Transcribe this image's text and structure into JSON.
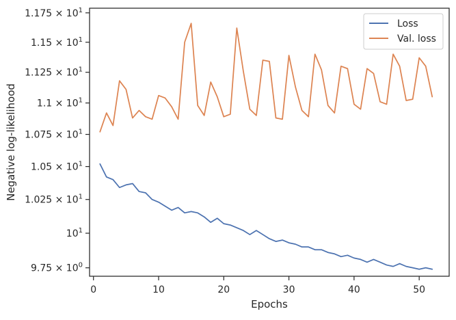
{
  "chart_data": {
    "type": "line",
    "xlabel": "Epochs",
    "ylabel": "Negative log-likelihood",
    "xlim": [
      -0.6,
      54.6
    ],
    "ylim": [
      9.69,
      11.79
    ],
    "x_ticks": [
      0,
      10,
      20,
      30,
      40,
      50
    ],
    "y_ticks": [
      {
        "value": 9.75,
        "mantissa": "9.75",
        "base": "10",
        "exp": "0"
      },
      {
        "value": 10.0,
        "mantissa": "",
        "base": "10",
        "exp": "1"
      },
      {
        "value": 10.25,
        "mantissa": "1.025",
        "base": "10",
        "exp": "1"
      },
      {
        "value": 10.5,
        "mantissa": "1.05",
        "base": "10",
        "exp": "1"
      },
      {
        "value": 10.75,
        "mantissa": "1.075",
        "base": "10",
        "exp": "1"
      },
      {
        "value": 11.0,
        "mantissa": "1.1",
        "base": "10",
        "exp": "1"
      },
      {
        "value": 11.25,
        "mantissa": "1.125",
        "base": "10",
        "exp": "1"
      },
      {
        "value": 11.5,
        "mantissa": "1.15",
        "base": "10",
        "exp": "1"
      },
      {
        "value": 11.75,
        "mantissa": "1.175",
        "base": "10",
        "exp": "1"
      }
    ],
    "legend_position": "top-right",
    "grid": false,
    "x": [
      1,
      2,
      3,
      4,
      5,
      6,
      7,
      8,
      9,
      10,
      11,
      12,
      13,
      14,
      15,
      16,
      17,
      18,
      19,
      20,
      21,
      22,
      23,
      24,
      25,
      26,
      27,
      28,
      29,
      30,
      31,
      32,
      33,
      34,
      35,
      36,
      37,
      38,
      39,
      40,
      41,
      42,
      43,
      44,
      45,
      46,
      47,
      48,
      49,
      50,
      51,
      52
    ],
    "series": [
      {
        "name": "Loss",
        "color": "#4c72b0",
        "values": [
          10.52,
          10.42,
          10.4,
          10.34,
          10.36,
          10.37,
          10.31,
          10.3,
          10.25,
          10.23,
          10.2,
          10.17,
          10.19,
          10.15,
          10.16,
          10.15,
          10.12,
          10.08,
          10.11,
          10.07,
          10.06,
          10.04,
          10.02,
          9.99,
          10.02,
          9.99,
          9.96,
          9.94,
          9.95,
          9.93,
          9.92,
          9.9,
          9.9,
          9.88,
          9.88,
          9.86,
          9.85,
          9.83,
          9.84,
          9.82,
          9.81,
          9.79,
          9.81,
          9.79,
          9.77,
          9.76,
          9.78,
          9.76,
          9.75,
          9.74,
          9.75,
          9.74
        ]
      },
      {
        "name": "Val. loss",
        "color": "#dd8452",
        "values": [
          10.77,
          10.92,
          10.82,
          11.18,
          11.11,
          10.88,
          10.94,
          10.89,
          10.87,
          11.06,
          11.04,
          10.97,
          10.87,
          11.5,
          11.66,
          10.98,
          10.9,
          11.17,
          11.05,
          10.89,
          10.91,
          11.62,
          11.26,
          10.95,
          10.9,
          11.35,
          11.34,
          10.88,
          10.87,
          11.39,
          11.13,
          10.94,
          10.89,
          11.4,
          11.27,
          10.98,
          10.92,
          11.3,
          11.28,
          10.99,
          10.95,
          11.28,
          11.24,
          11.01,
          10.99,
          11.4,
          11.3,
          11.02,
          11.03,
          11.37,
          11.3,
          11.05
        ]
      }
    ]
  }
}
